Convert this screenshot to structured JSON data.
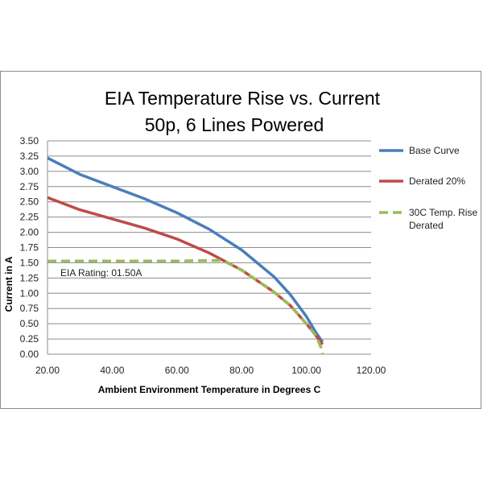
{
  "chart_data": {
    "type": "line",
    "title": "EIA Temperature Rise vs. Current",
    "subtitle": "50p, 6 Lines Powered",
    "xlabel": "Ambient Environment Temperature in Degrees C",
    "ylabel": "Current in A",
    "xlim": [
      20,
      120
    ],
    "ylim": [
      0,
      3.5
    ],
    "x_ticks": [
      "20.00",
      "40.00",
      "60.00",
      "80.00",
      "100.00",
      "120.00"
    ],
    "y_ticks": [
      "0.00",
      "0.25",
      "0.50",
      "0.75",
      "1.00",
      "1.25",
      "1.50",
      "1.75",
      "2.00",
      "2.25",
      "2.50",
      "2.75",
      "3.00",
      "3.25",
      "3.50"
    ],
    "grid": "horizontal",
    "legend": "right",
    "annotation": "EIA Rating:  01.50A",
    "series": [
      {
        "name": "Base Curve",
        "color": "#4a7ebb",
        "style": "solid",
        "points": [
          [
            20,
            3.22
          ],
          [
            30,
            2.95
          ],
          [
            40,
            2.75
          ],
          [
            50,
            2.55
          ],
          [
            60,
            2.32
          ],
          [
            70,
            2.05
          ],
          [
            80,
            1.71
          ],
          [
            90,
            1.27
          ],
          [
            95,
            0.98
          ],
          [
            100,
            0.62
          ],
          [
            103,
            0.35
          ],
          [
            105,
            0.2
          ]
        ]
      },
      {
        "name": "Derated 20%",
        "color": "#be4b48",
        "style": "solid",
        "points": [
          [
            20,
            2.57
          ],
          [
            30,
            2.37
          ],
          [
            40,
            2.22
          ],
          [
            50,
            2.07
          ],
          [
            60,
            1.89
          ],
          [
            70,
            1.66
          ],
          [
            80,
            1.38
          ],
          [
            90,
            1.02
          ],
          [
            95,
            0.8
          ],
          [
            100,
            0.5
          ],
          [
            103,
            0.3
          ],
          [
            105,
            0.16
          ]
        ]
      },
      {
        "name": "30C Temp. Rise\nDerated",
        "color": "#9bbb59",
        "style": "dashed",
        "points": [
          [
            20,
            1.53
          ],
          [
            40,
            1.53
          ],
          [
            60,
            1.53
          ],
          [
            74,
            1.54
          ],
          [
            80,
            1.38
          ],
          [
            90,
            1.02
          ],
          [
            95,
            0.8
          ],
          [
            100,
            0.5
          ],
          [
            103,
            0.3
          ],
          [
            104.6,
            0.1
          ],
          [
            105,
            0.0
          ]
        ]
      }
    ]
  }
}
